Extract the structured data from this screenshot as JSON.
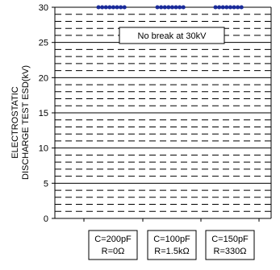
{
  "chart_data": {
    "type": "line",
    "ylabel_lines": [
      "ELECTROSTATIC",
      "DISCHARGE TEST ESD(kV)"
    ],
    "ylim": [
      0,
      30
    ],
    "y_ticks": [
      0,
      5,
      10,
      15,
      20,
      25,
      30
    ],
    "categories": [
      {
        "line1": "C=200pF",
        "line2": "R=0Ω"
      },
      {
        "line1": "C=100pF",
        "line2": "R=1.5kΩ"
      },
      {
        "line1": "C=150pF",
        "line2": "R=330Ω"
      }
    ],
    "values": [
      30,
      30,
      30
    ],
    "annotation": "No break at 30kV",
    "colors": {
      "series": "#1a2b9a",
      "grid_dash": "#000000",
      "axis": "#000000"
    }
  }
}
